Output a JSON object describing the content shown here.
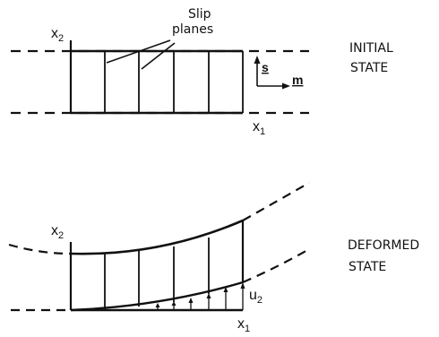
{
  "initial": {
    "x2_label": "x",
    "x2_sub": "2",
    "x1_label": "x",
    "x1_sub": "1",
    "slip_line1": "Slip",
    "slip_line2": "planes",
    "s_label": "s",
    "m_label": "m",
    "state_line1": "INITIAL",
    "state_line2": "STATE"
  },
  "deformed": {
    "x2_label": "x",
    "x2_sub": "2",
    "x1_label": "x",
    "x1_sub": "1",
    "u2_label": "u",
    "u2_sub": "2",
    "state_line1": "DEFORMED",
    "state_line2": "STATE"
  }
}
